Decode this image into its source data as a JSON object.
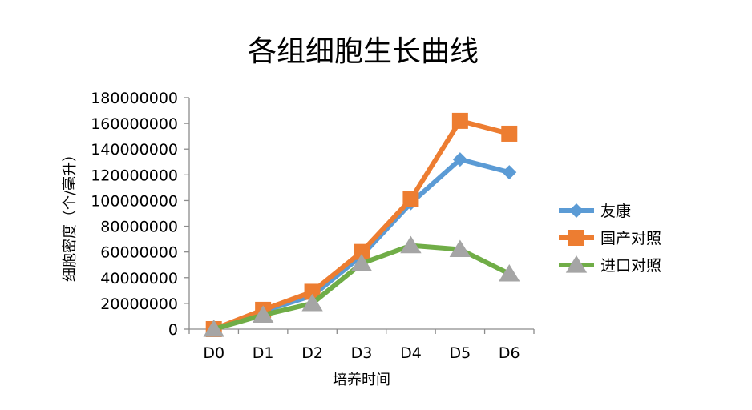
{
  "chart_data": {
    "type": "line",
    "title": "各组细胞生长曲线",
    "xlabel": "培养时间",
    "ylabel": "细胞密度（个/毫升）",
    "categories": [
      "D0",
      "D1",
      "D2",
      "D3",
      "D4",
      "D5",
      "D6"
    ],
    "ylim": [
      0,
      180000000
    ],
    "yticks": [
      0,
      20000000,
      40000000,
      60000000,
      80000000,
      100000000,
      120000000,
      140000000,
      160000000,
      180000000
    ],
    "grid": false,
    "legend_position": "right",
    "series": [
      {
        "name": "友康",
        "color": "#5B9BD5",
        "marker": "diamond",
        "values": [
          0,
          14000000,
          26000000,
          57000000,
          98000000,
          132000000,
          122000000
        ]
      },
      {
        "name": "国产对照",
        "color": "#ED7D31",
        "marker": "square",
        "values": [
          0,
          15000000,
          29000000,
          60000000,
          101000000,
          162000000,
          152000000
        ]
      },
      {
        "name": "进口对照",
        "color": "#70AD47",
        "marker": "triangle",
        "marker_color": "#A5A5A5",
        "values": [
          0,
          11000000,
          20000000,
          51000000,
          65000000,
          62000000,
          43000000
        ]
      }
    ]
  }
}
